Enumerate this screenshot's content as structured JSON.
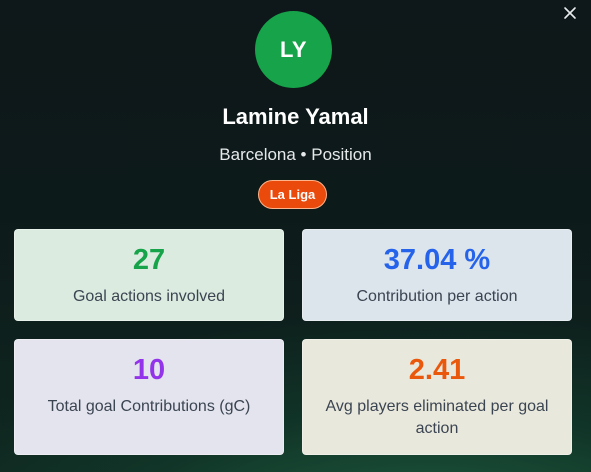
{
  "player": {
    "initials": "LY",
    "name": "Lamine Yamal",
    "subtitle": "Barcelona • Position",
    "league": "La Liga"
  },
  "stats": [
    {
      "value": "27",
      "label": "Goal actions involved"
    },
    {
      "value": "37.04 %",
      "label": "Contribution per action"
    },
    {
      "value": "10",
      "label": "Total goal Contributions (gC)"
    },
    {
      "value": "2.41",
      "label": "Avg players eliminated per goal action"
    }
  ],
  "colors": {
    "avatar": "#16a34a",
    "league_badge": "#ea4a0c",
    "stat_values": [
      "#16a34a",
      "#2563eb",
      "#9333ea",
      "#ea580c"
    ]
  },
  "icons": {
    "close": "close-icon"
  }
}
